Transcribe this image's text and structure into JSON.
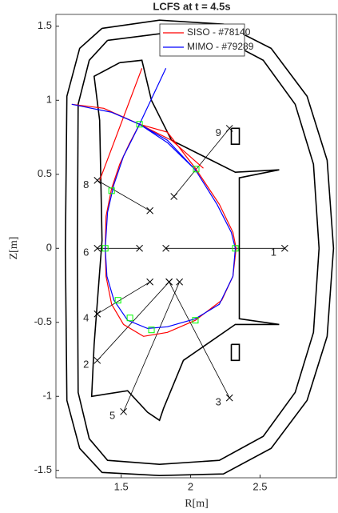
{
  "chart_data": {
    "type": "line",
    "title": "LCFS at t = 4.5s",
    "xlabel": "R[m]",
    "ylabel": "Z[m]",
    "xlim": [
      1.03,
      3.05
    ],
    "ylim": [
      -1.55,
      1.58
    ],
    "xticks": [
      1.5,
      2,
      2.5
    ],
    "yticks": [
      -1.5,
      -1,
      -0.5,
      0,
      0.5,
      1,
      1.5
    ],
    "legend": "upper right",
    "series": [
      {
        "name": "SISO - #78140",
        "color": "#ff0000",
        "x": [
          1.632,
          1.833,
          2.034,
          2.207,
          2.305,
          2.328,
          2.305,
          2.224,
          2.034,
          1.833,
          1.661,
          1.517,
          1.431,
          1.391,
          1.385,
          1.391,
          1.431,
          1.489,
          1.557,
          1.632,
          null,
          1.345,
          1.649,
          null,
          1.144,
          1.374,
          1.632,
          1.862,
          2.092
        ],
        "values": [
          0.838,
          0.784,
          0.541,
          0.297,
          0.108,
          0,
          -0.189,
          -0.351,
          -0.486,
          -0.568,
          -0.595,
          -0.514,
          -0.378,
          -0.189,
          0,
          0.216,
          0.405,
          0.568,
          0.703,
          0.838,
          null,
          0.459,
          1.216,
          null,
          0.973,
          0.946,
          0.838,
          0.73,
          0.541
        ]
      },
      {
        "name": "MIMO - #79289",
        "color": "#0000ff",
        "x": [
          1.632,
          1.833,
          2.034,
          2.19,
          2.293,
          2.322,
          2.305,
          2.207,
          2.034,
          1.833,
          1.69,
          1.546,
          1.448,
          1.397,
          1.385,
          1.402,
          1.448,
          1.517,
          1.575,
          1.632,
          null,
          1.632,
          1.822,
          null,
          1.144,
          1.431,
          1.632,
          1.833,
          2.034
        ],
        "values": [
          0.838,
          0.73,
          0.53,
          0.297,
          0.108,
          0,
          -0.189,
          -0.378,
          -0.476,
          -0.53,
          -0.541,
          -0.486,
          -0.351,
          -0.189,
          0,
          0.243,
          0.432,
          0.622,
          0.73,
          0.838,
          null,
          0.838,
          1.216,
          null,
          0.973,
          0.919,
          0.838,
          0.714,
          0.53
        ]
      }
    ],
    "structures": [
      {
        "color": "#000000",
        "x": [
          1.362,
          1.776,
          2.236,
          2.58,
          2.839,
          2.983,
          3.029,
          2.983,
          2.839,
          2.58,
          2.236,
          1.776,
          1.362,
          1.201,
          1.109,
          1.098,
          1.109,
          1.201,
          1.362
        ],
        "values": [
          1.486,
          1.541,
          1.514,
          1.351,
          1.027,
          0.595,
          0,
          -0.595,
          -1.027,
          -1.351,
          -1.524,
          -1.535,
          -1.514,
          -1.351,
          -1.027,
          0,
          1.027,
          1.351,
          1.486
        ]
      },
      {
        "color": "#000000",
        "x": [
          1.402,
          1.776,
          2.207,
          2.523,
          2.753,
          2.885,
          2.925,
          2.885,
          2.753,
          2.523,
          2.207,
          1.776,
          1.402,
          1.27,
          1.19,
          1.184,
          1.19,
          1.27,
          1.402
        ],
        "values": [
          1.405,
          1.449,
          1.427,
          1.27,
          0.973,
          0.568,
          0,
          -0.568,
          -0.973,
          -1.27,
          -1.432,
          -1.459,
          -1.432,
          -1.286,
          -0.973,
          0,
          0.973,
          1.27,
          1.405
        ]
      },
      {
        "color": "#000000",
        "x": [
          1.489,
          1.649,
          1.718,
          1.862,
          2.322,
          2.638,
          2.351,
          2.351,
          2.638,
          2.322,
          1.948,
          1.805,
          1.776,
          1.69,
          1.546,
          1.287,
          1.305,
          1.362,
          1.345,
          1.305,
          1.489
        ],
        "values": [
          1.254,
          1.27,
          1.0,
          0.73,
          0.514,
          0.53,
          0.476,
          -0.476,
          -0.514,
          -0.514,
          -0.757,
          -1.081,
          -1.162,
          -1.108,
          -0.962,
          -1.0,
          -0.649,
          0.054,
          0.865,
          1.162,
          1.254
        ]
      },
      {
        "color": "#000000",
        "x": [
          2.293,
          2.351,
          2.351,
          2.293,
          2.293
        ],
        "values": [
          0.811,
          0.811,
          0.703,
          0.703,
          0.811
        ]
      },
      {
        "color": "#000000",
        "x": [
          2.293,
          2.351,
          2.351,
          2.293,
          2.293
        ],
        "values": [
          -0.649,
          -0.649,
          -0.757,
          -0.757,
          -0.649
        ]
      }
    ],
    "sensors": [
      {
        "label": "1",
        "x": [
          2.678,
          1.822
        ],
        "values": [
          0,
          0
        ]
      },
      {
        "label": "2",
        "x": [
          1.328,
          1.845
        ],
        "values": [
          -0.757,
          -0.227
        ]
      },
      {
        "label": "3",
        "x": [
          2.28,
          1.845
        ],
        "values": [
          -1.01,
          -0.227
        ]
      },
      {
        "label": "4",
        "x": [
          1.328,
          1.707
        ],
        "values": [
          -0.443,
          -0.227
        ]
      },
      {
        "label": "5",
        "x": [
          1.517,
          1.92
        ],
        "values": [
          -1.103,
          -0.227
        ]
      },
      {
        "label": "6",
        "x": [
          1.328,
          1.632
        ],
        "values": [
          0,
          0
        ]
      },
      {
        "label": "8",
        "x": [
          1.328,
          1.707
        ],
        "values": [
          0.459,
          0.254
        ]
      },
      {
        "label": "9",
        "x": [
          2.28,
          1.88
        ],
        "values": [
          0.81,
          0.35
        ]
      }
    ],
    "points": {
      "color": "#00ff00",
      "x": [
        2.322,
        2.04,
        1.632,
        1.431,
        1.385,
        1.477,
        1.563,
        1.718,
        2.034
      ],
      "values": [
        0,
        0.535,
        0.838,
        0.389,
        0,
        -0.351,
        -0.47,
        -0.551,
        -0.486
      ]
    }
  }
}
